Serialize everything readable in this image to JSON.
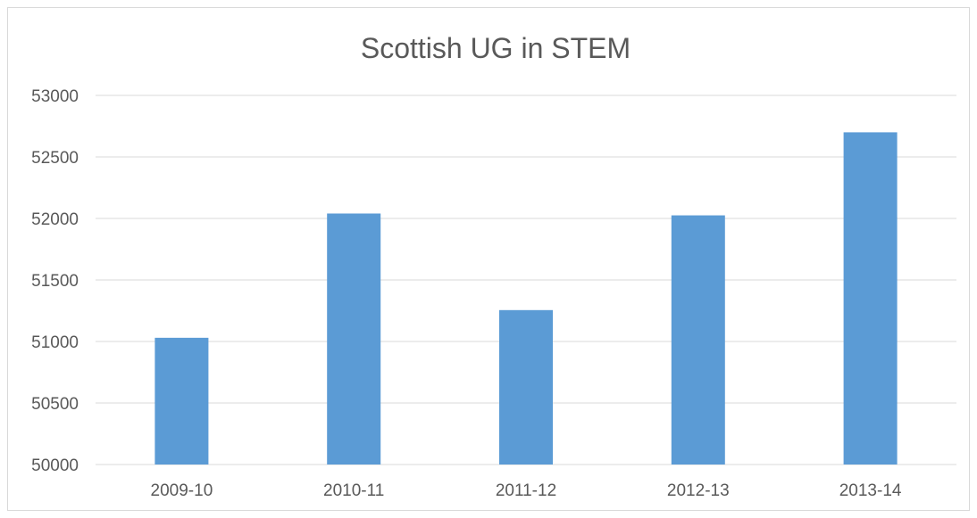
{
  "chart_data": {
    "type": "bar",
    "title": "Scottish UG in STEM",
    "xlabel": "",
    "ylabel": "",
    "categories": [
      "2009-10",
      "2010-11",
      "2011-12",
      "2012-13",
      "2013-14"
    ],
    "values": [
      51030,
      52040,
      51255,
      52025,
      52700
    ],
    "ylim": [
      50000,
      53000
    ],
    "yticks": [
      "50000",
      "50500",
      "51000",
      "51500",
      "52000",
      "52500",
      "53000"
    ],
    "grid": true,
    "legend": "none",
    "bar_color": "#5b9bd5",
    "grid_color": "#d9d9d9",
    "text_color": "#595959"
  }
}
